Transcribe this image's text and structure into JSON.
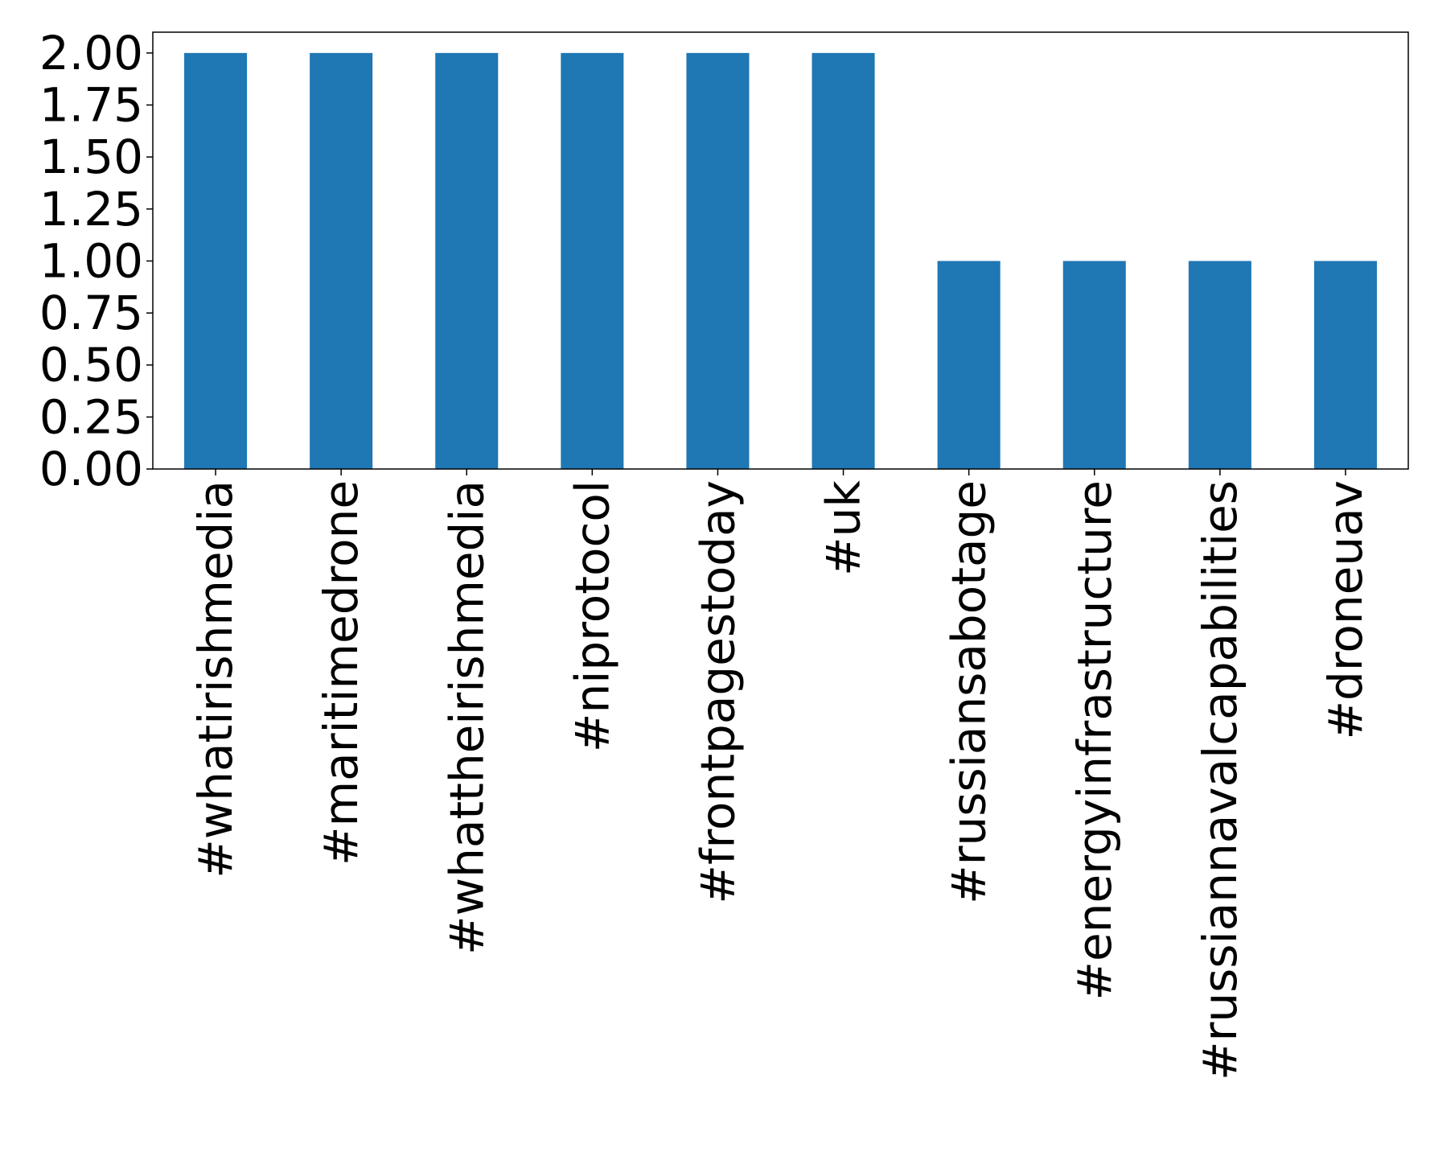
{
  "chart_data": {
    "type": "bar",
    "title": "",
    "xlabel": "",
    "ylabel": "",
    "categories": [
      "#whatirishmedia",
      "#maritimedrone",
      "#whattheirishmedia",
      "#niprotocol",
      "#frontpagestoday",
      "#uk",
      "#russiansabotage",
      "#energyinfrastructure",
      "#russiannavalcapabilities",
      "#droneuav"
    ],
    "values": [
      2,
      2,
      2,
      2,
      2,
      2,
      1,
      1,
      1,
      1
    ],
    "ylim": [
      0,
      2.1
    ],
    "yticks": [
      "0.00",
      "0.25",
      "0.50",
      "0.75",
      "1.00",
      "1.25",
      "1.50",
      "1.75",
      "2.00"
    ],
    "ytick_values": [
      0,
      0.25,
      0.5,
      0.75,
      1.0,
      1.25,
      1.5,
      1.75,
      2.0
    ],
    "grid": false,
    "legend": "none",
    "bar_color": "#1f77b4",
    "axis_color": "#000000"
  }
}
